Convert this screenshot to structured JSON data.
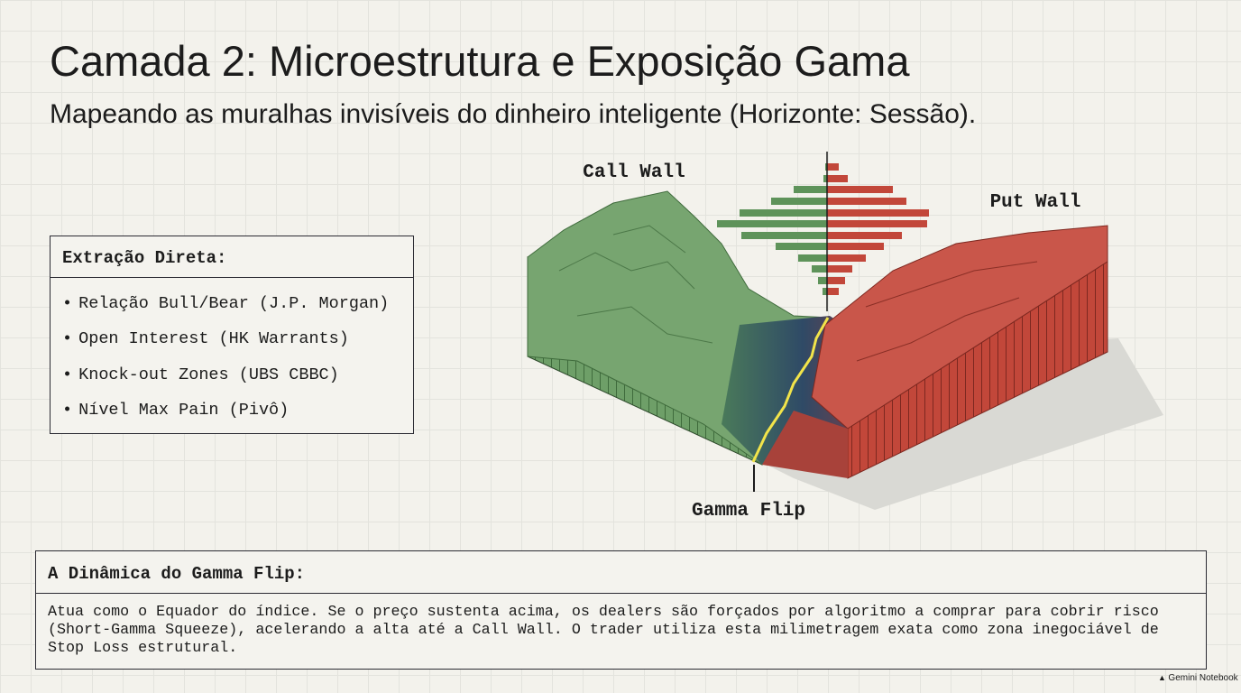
{
  "header": {
    "title": "Camada 2: Microestrutura e Exposição Gama",
    "subtitle": "Mapeando as muralhas invisíveis do dinheiro inteligente (Horizonte: Sessão)."
  },
  "extraction_box": {
    "heading": "Extração Direta:",
    "items": [
      "Relação Bull/Bear (J.P. Morgan)",
      "Open Interest (HK Warrants)",
      "Knock-out Zones (UBS CBBC)",
      "Nível Max Pain (Pivô)"
    ]
  },
  "illustration": {
    "labels": [
      "Call Wall",
      "Put Wall",
      "Gamma Flip"
    ]
  },
  "dynamics_box": {
    "heading": "A Dinâmica do Gamma Flip:",
    "text": "Atua como o Equador do índice. Se o preço sustenta acima, os dealers são forçados por algoritmo a comprar para cobrir risco (Short-Gamma Squeeze), acelerando a alta até a Call Wall. O trader utiliza esta milimetragem exata como zona inegociável de Stop Loss estrutural."
  },
  "footer": {
    "brand": "Gemini Notebook"
  }
}
